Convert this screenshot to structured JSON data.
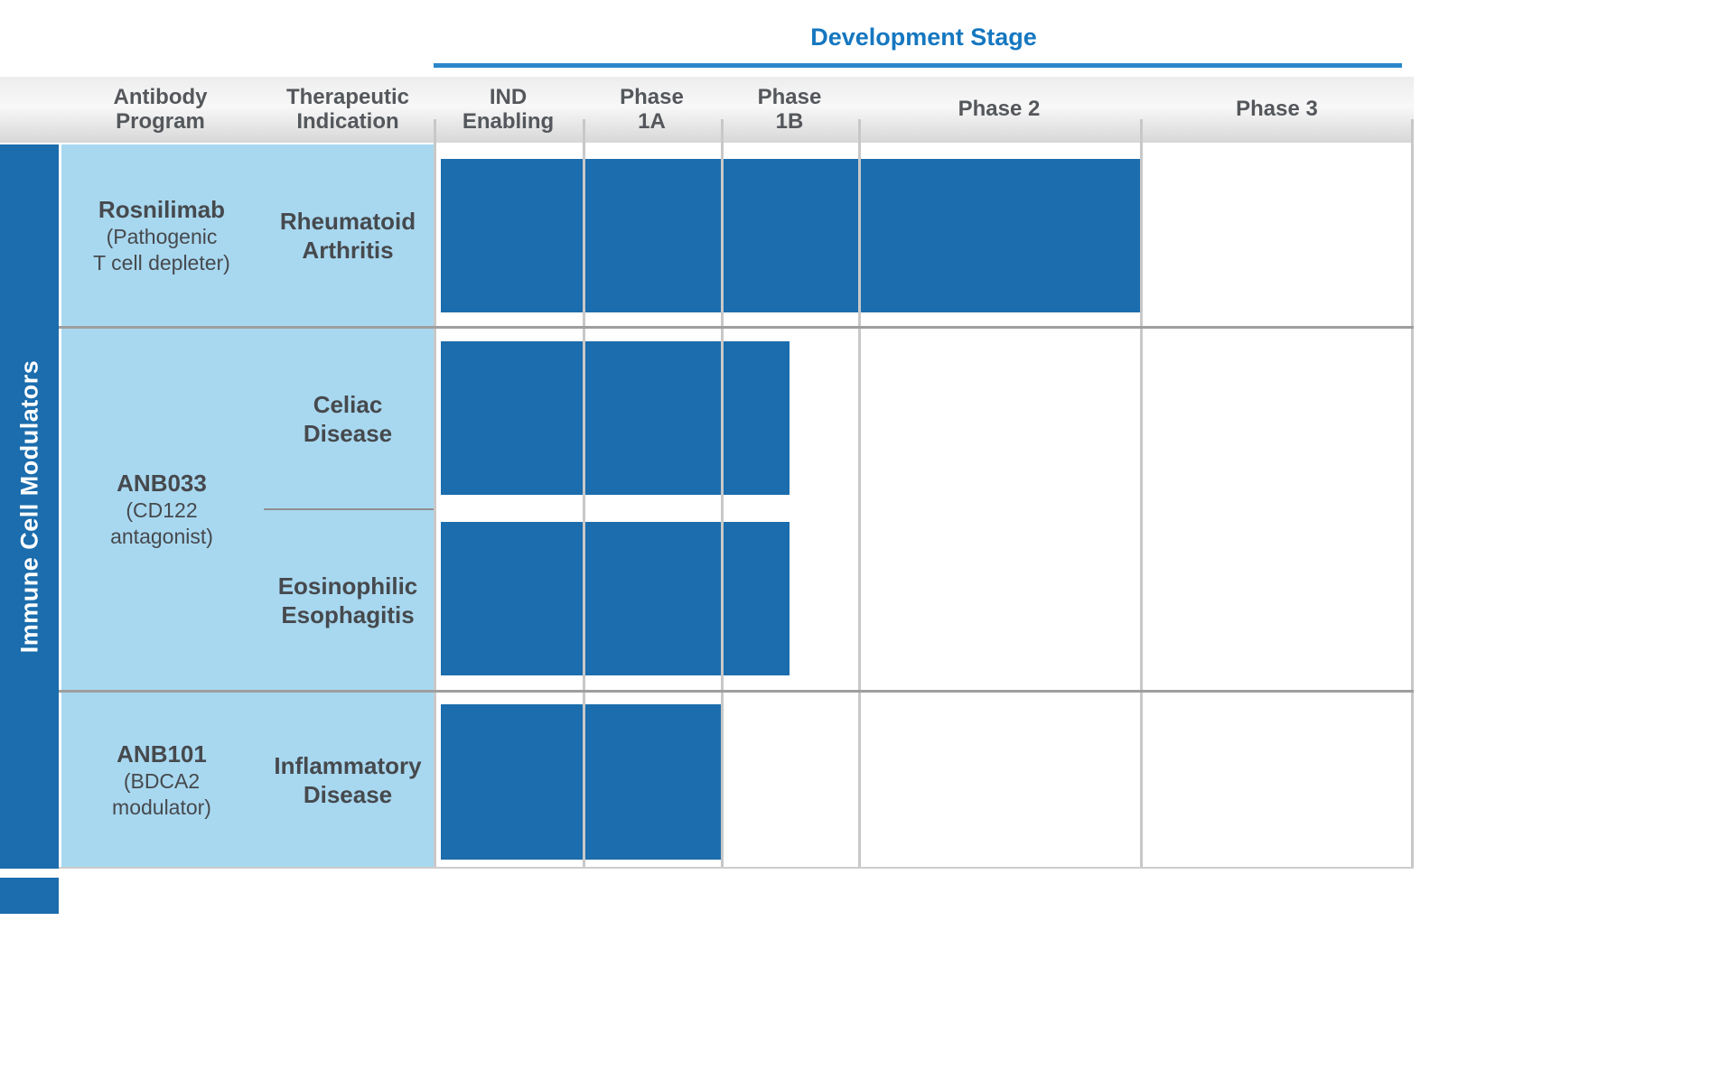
{
  "header": {
    "title": "Development Stage",
    "columns": {
      "antibody_program": "Antibody\nProgram",
      "therapeutic_indication": "Therapeutic\nIndication",
      "ind_enabling": "IND\nEnabling",
      "phase_1a": "Phase\n1A",
      "phase_1b": "Phase\n1B",
      "phase_2": "Phase 2",
      "phase_3": "Phase 3"
    }
  },
  "category_label": "Immune Cell Modulators",
  "programs": [
    {
      "name": "Rosnilimab",
      "mechanism": "(Pathogenic\nT cell depleter)"
    },
    {
      "name": "ANB033",
      "mechanism": "(CD122\nantagonist)"
    },
    {
      "name": "ANB101",
      "mechanism": "(BDCA2\nmodulator)"
    }
  ],
  "indications": [
    {
      "label": "Rheumatoid\nArthritis"
    },
    {
      "label": "Celiac\nDisease"
    },
    {
      "label": "Eosinophilic\nEsophagitis"
    },
    {
      "label": "Inflammatory\nDisease"
    }
  ],
  "colors": {
    "bar_blue": "#1b6dad",
    "category_strip_blue": "#1b6dad",
    "program_column_light_blue": "#a8d8f0",
    "title_blue": "#1577c0",
    "underline_blue": "#2b87ca"
  },
  "chart_data": {
    "type": "bar",
    "title": "Development Stage",
    "category": "Immune Cell Modulators",
    "stages": [
      "IND Enabling",
      "Phase 1A",
      "Phase 1B",
      "Phase 2",
      "Phase 3"
    ],
    "bar_color": "#1b6dad",
    "rows": [
      {
        "program": "Rosnilimab",
        "mechanism": "Pathogenic T cell depleter",
        "indication": "Rheumatoid Arthritis",
        "stages_completed": 4,
        "furthest_stage": "Phase 2"
      },
      {
        "program": "ANB033",
        "mechanism": "CD122 antagonist",
        "indication": "Celiac Disease",
        "stages_completed": 2.5,
        "furthest_stage": "Phase 1B"
      },
      {
        "program": "ANB033",
        "mechanism": "CD122 antagonist",
        "indication": "Eosinophilic Esophagitis",
        "stages_completed": 2.5,
        "furthest_stage": "Phase 1B"
      },
      {
        "program": "ANB101",
        "mechanism": "BDCA2 modulator",
        "indication": "Inflammatory Disease",
        "stages_completed": 2,
        "furthest_stage": "Phase 1A"
      }
    ]
  }
}
